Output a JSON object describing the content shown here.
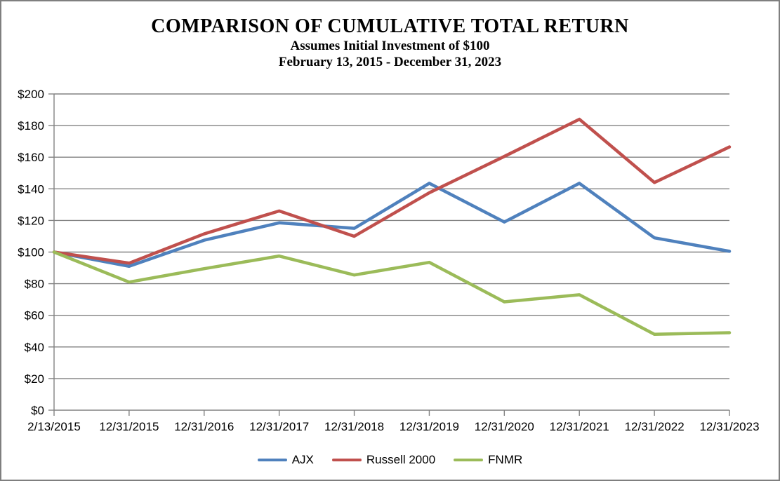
{
  "title": "COMPARISON OF CUMULATIVE TOTAL RETURN",
  "subtitle1": "Assumes Initial Investment of $100",
  "subtitle2": "February 13, 2015 - December 31, 2023",
  "chart_data": {
    "type": "line",
    "categories": [
      "2/13/2015",
      "12/31/2015",
      "12/31/2016",
      "12/31/2017",
      "12/31/2018",
      "12/31/2019",
      "12/31/2020",
      "12/31/2021",
      "12/31/2022",
      "12/31/2023"
    ],
    "series": [
      {
        "name": "AJX",
        "color": "#4F81BD",
        "values": [
          100,
          91,
          107.5,
          118.5,
          115,
          143.5,
          119,
          143.5,
          109,
          100.5
        ]
      },
      {
        "name": "Russell 2000",
        "color": "#C0504D",
        "values": [
          100,
          93,
          111.5,
          126,
          110,
          137.5,
          160.5,
          184,
          144,
          166.5
        ]
      },
      {
        "name": "FNMR",
        "color": "#9BBB59",
        "values": [
          100,
          81,
          89.5,
          97.5,
          85.5,
          93.5,
          68.5,
          73,
          48,
          49
        ]
      }
    ],
    "ylim": [
      0,
      200
    ],
    "ytick_step": 20,
    "ytick_labels": [
      "$0",
      "$20",
      "$40",
      "$60",
      "$80",
      "$100",
      "$120",
      "$140",
      "$160",
      "$180",
      "$200"
    ],
    "grid": true,
    "legend_position": "bottom",
    "axis_color": "#828282"
  }
}
